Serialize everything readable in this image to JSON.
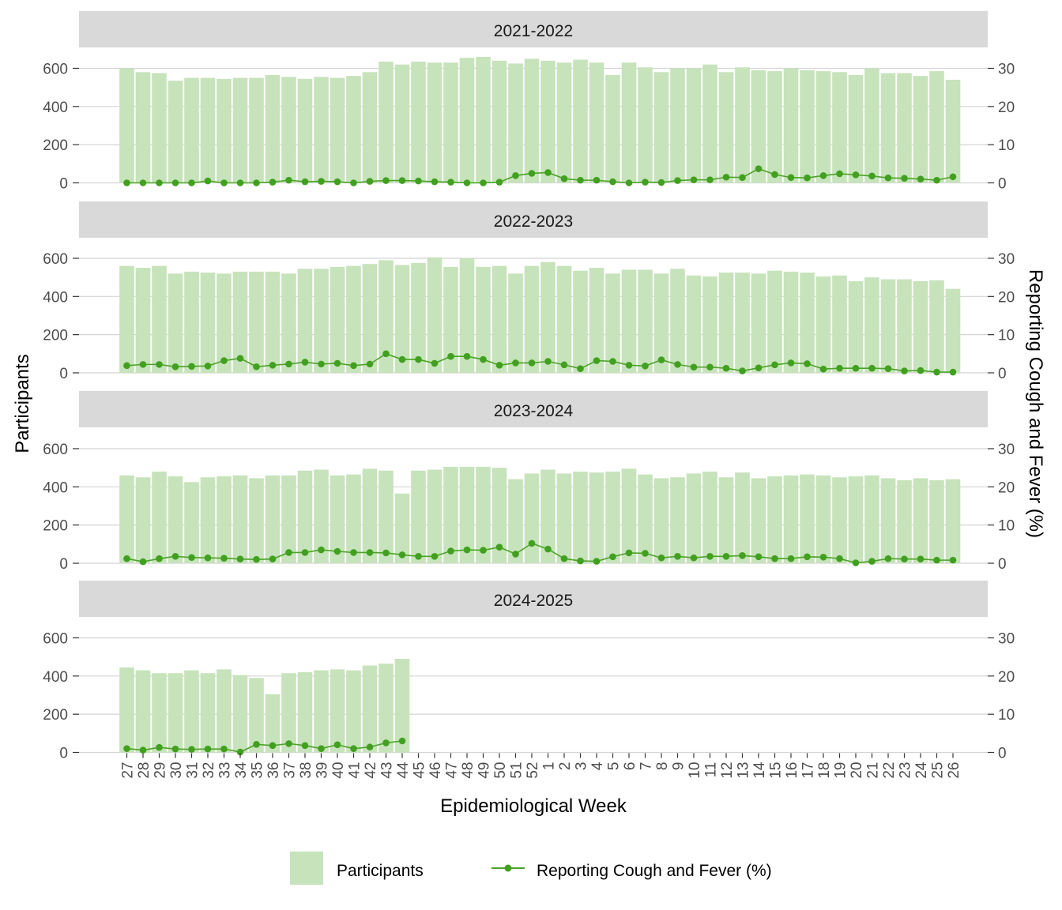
{
  "chart_data": {
    "type": "bar",
    "xlabel": "Epidemiological Week",
    "ylabel": "Participants",
    "y2label": "Reporting Cough and Fever (%)",
    "ylim": [
      0,
      600
    ],
    "y2lim": [
      0,
      30
    ],
    "yticks": [
      "0",
      "200",
      "400",
      "600"
    ],
    "y2ticks": [
      "0",
      "10",
      "20",
      "30"
    ],
    "categories": [
      "27",
      "28",
      "29",
      "30",
      "31",
      "32",
      "33",
      "34",
      "35",
      "36",
      "37",
      "38",
      "39",
      "40",
      "41",
      "42",
      "43",
      "44",
      "45",
      "46",
      "47",
      "48",
      "49",
      "50",
      "51",
      "52",
      "1",
      "2",
      "3",
      "4",
      "5",
      "6",
      "7",
      "8",
      "9",
      "10",
      "11",
      "12",
      "13",
      "14",
      "15",
      "16",
      "17",
      "18",
      "19",
      "20",
      "21",
      "22",
      "23",
      "24",
      "25",
      "26"
    ],
    "legend": {
      "position": "bottom",
      "participants_label": "Participants",
      "percent_label": "Reporting Cough and Fever (%)"
    },
    "colors": {
      "bar": "#c7e3bb",
      "line": "#4da329",
      "point": "#41a01f",
      "strip": "#d9d9d9",
      "grid": "#d4d4d4"
    },
    "panels": [
      {
        "label": "2021-2022",
        "participants": [
          600,
          580,
          575,
          535,
          550,
          550,
          545,
          550,
          550,
          565,
          555,
          545,
          555,
          550,
          560,
          580,
          635,
          620,
          635,
          630,
          630,
          655,
          660,
          640,
          625,
          650,
          640,
          630,
          645,
          630,
          565,
          630,
          605,
          580,
          600,
          600,
          620,
          580,
          605,
          590,
          585,
          600,
          590,
          585,
          580,
          565,
          600,
          575,
          575,
          560,
          585,
          540
        ],
        "percent": [
          0,
          0,
          0,
          0,
          0,
          0.5,
          0,
          0,
          0,
          0.2,
          0.7,
          0.3,
          0.4,
          0.3,
          0,
          0.4,
          0.6,
          0.6,
          0.5,
          0.3,
          0.2,
          0,
          0,
          0.2,
          1.9,
          2.5,
          2.7,
          1.1,
          0.7,
          0.7,
          0.3,
          0,
          0.2,
          0.1,
          0.6,
          0.8,
          0.8,
          1.5,
          1.4,
          3.7,
          2.2,
          1.4,
          1.3,
          1.9,
          2.4,
          2.1,
          1.8,
          1.3,
          1.2,
          1,
          0.7,
          1.6
        ]
      },
      {
        "label": "2022-2023",
        "participants": [
          560,
          550,
          560,
          520,
          530,
          525,
          520,
          530,
          530,
          530,
          520,
          545,
          545,
          555,
          560,
          570,
          590,
          565,
          575,
          605,
          555,
          600,
          555,
          560,
          520,
          560,
          580,
          560,
          535,
          550,
          520,
          540,
          540,
          520,
          545,
          510,
          505,
          525,
          525,
          520,
          535,
          530,
          525,
          505,
          510,
          480,
          500,
          490,
          490,
          480,
          485,
          440
        ]
      },
      {
        "label": "2023-2024",
        "participants": [
          460,
          450,
          480,
          455,
          425,
          450,
          455,
          460,
          445,
          460,
          460,
          485,
          490,
          460,
          465,
          495,
          485,
          365,
          485,
          490,
          505,
          505,
          505,
          500,
          440,
          470,
          490,
          470,
          480,
          475,
          480,
          495,
          465,
          445,
          450,
          470,
          480,
          450,
          475,
          445,
          455,
          460,
          465,
          460,
          450,
          455,
          460,
          445,
          435,
          445,
          435,
          440
        ]
      },
      {
        "label": "2024-2025",
        "participants": [
          445,
          430,
          415,
          415,
          430,
          415,
          435,
          405,
          390,
          305,
          415,
          420,
          430,
          435,
          430,
          455,
          465,
          490
        ],
        "percent": [
          1,
          0.6,
          1.3,
          0.9,
          0.8,
          0.9,
          0.9,
          0.1,
          2.1,
          1.8,
          2.3,
          1.8,
          1,
          2,
          1,
          1.4,
          2.5,
          3
        ]
      }
    ]
  }
}
